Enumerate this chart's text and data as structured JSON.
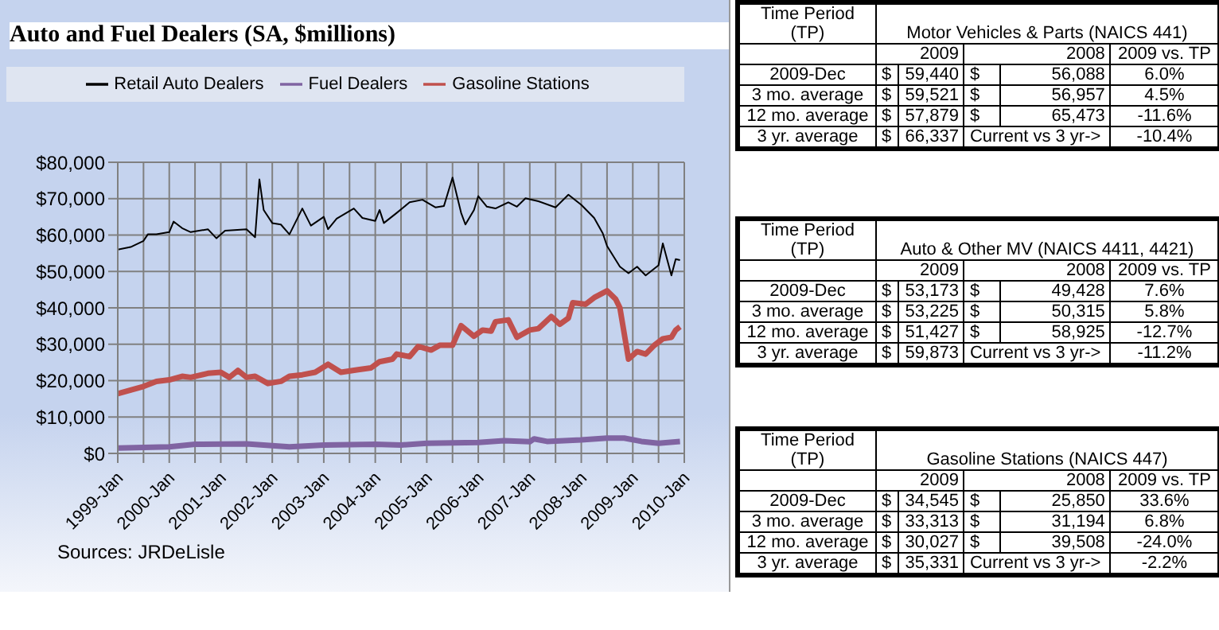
{
  "chart_data": [
    {
      "type": "line",
      "title": "Auto and Fuel Dealers (SA, $millions)",
      "annotations": [
        "Sources: JRDeLisle"
      ],
      "xlim": [
        "1999-01",
        "2010-01"
      ],
      "xticks": [
        {
          "value": "1999-01",
          "label": "1999-Jan"
        },
        {
          "value": "1999-07",
          "label": null
        },
        {
          "value": "2000-01",
          "label": "2000-Jan"
        },
        {
          "value": "2000-07",
          "label": null
        },
        {
          "value": "2001-01",
          "label": "2001-Jan"
        },
        {
          "value": "2001-07",
          "label": null
        },
        {
          "value": "2002-01",
          "label": "2002-Jan"
        },
        {
          "value": "2002-07",
          "label": null
        },
        {
          "value": "2003-01",
          "label": "2003-Jan"
        },
        {
          "value": "2003-07",
          "label": null
        },
        {
          "value": "2004-01",
          "label": "2004-Jan"
        },
        {
          "value": "2004-07",
          "label": null
        },
        {
          "value": "2005-01",
          "label": "2005-Jan"
        },
        {
          "value": "2005-07",
          "label": null
        },
        {
          "value": "2006-01",
          "label": "2006-Jan"
        },
        {
          "value": "2006-07",
          "label": null
        },
        {
          "value": "2007-01",
          "label": "2007-Jan"
        },
        {
          "value": "2007-07",
          "label": null
        },
        {
          "value": "2008-01",
          "label": "2008-Jan"
        },
        {
          "value": "2008-07",
          "label": null
        },
        {
          "value": "2009-01",
          "label": "2009-Jan"
        },
        {
          "value": "2009-07",
          "label": null
        },
        {
          "value": "2010-01",
          "label": "2010-Jan"
        }
      ],
      "ylim": [
        0,
        80000
      ],
      "yticks": [
        {
          "value": 0,
          "label": "$0"
        },
        {
          "value": 10000,
          "label": "$10,000"
        },
        {
          "value": 20000,
          "label": "$20,000"
        },
        {
          "value": 30000,
          "label": "$30,000"
        },
        {
          "value": 40000,
          "label": "$40,000"
        },
        {
          "value": 50000,
          "label": "$50,000"
        },
        {
          "value": 60000,
          "label": "$60,000"
        },
        {
          "value": 70000,
          "label": "$70,000"
        },
        {
          "value": 80000,
          "label": "$80,000"
        }
      ],
      "grid": true,
      "legend": "top",
      "marker": "none",
      "series": [
        {
          "name": "Retail Auto Dealers",
          "color": "#000000",
          "x": [
            "1999-01",
            "1999-04",
            "1999-07",
            "1999-08",
            "1999-10",
            "2000-01",
            "2000-02",
            "2000-04",
            "2000-06",
            "2000-10",
            "2000-12",
            "2001-02",
            "2001-07",
            "2001-09",
            "2001-10",
            "2001-11",
            "2002-01",
            "2002-03",
            "2002-05",
            "2002-08",
            "2002-10",
            "2003-01",
            "2003-02",
            "2003-04",
            "2003-08",
            "2003-10",
            "2004-01",
            "2004-02",
            "2004-03",
            "2004-06",
            "2004-09",
            "2004-12",
            "2005-03",
            "2005-05",
            "2005-07",
            "2005-09",
            "2005-10",
            "2005-12",
            "2006-01",
            "2006-03",
            "2006-05",
            "2006-08",
            "2006-10",
            "2006-12",
            "2007-03",
            "2007-07",
            "2007-10",
            "2008-01",
            "2008-04",
            "2008-06",
            "2008-07",
            "2008-10",
            "2008-12",
            "2009-02",
            "2009-04",
            "2009-07",
            "2009-08",
            "2009-10",
            "2009-11",
            "2009-12"
          ],
          "values": [
            56000,
            56700,
            58400,
            60200,
            60200,
            60800,
            63700,
            61900,
            60800,
            61600,
            59100,
            61200,
            61600,
            59400,
            75300,
            66900,
            63300,
            62900,
            60200,
            67300,
            62600,
            65000,
            61600,
            64500,
            67300,
            64700,
            63900,
            66900,
            63300,
            66100,
            69000,
            69700,
            67600,
            68000,
            75800,
            66100,
            62900,
            66900,
            70700,
            67800,
            67300,
            69000,
            67800,
            70100,
            69300,
            67600,
            71100,
            68300,
            64700,
            60500,
            57000,
            51300,
            49500,
            51300,
            48900,
            51700,
            57700,
            48900,
            53400,
            53100
          ]
        },
        {
          "name": "Fuel Dealers",
          "color": "#8064a2",
          "x": [
            "1999-01",
            "2000-01",
            "2000-07",
            "2001-07",
            "2002-05",
            "2003-01",
            "2004-01",
            "2004-07",
            "2005-01",
            "2006-01",
            "2006-07",
            "2007-01",
            "2007-02",
            "2007-05",
            "2008-01",
            "2008-07",
            "2008-11",
            "2009-03",
            "2009-07",
            "2009-12"
          ],
          "values": [
            1500,
            1800,
            2500,
            2600,
            1800,
            2300,
            2500,
            2300,
            2800,
            3000,
            3500,
            3200,
            4000,
            3300,
            3700,
            4200,
            4200,
            3300,
            2800,
            3300
          ]
        },
        {
          "name": "Gasoline Stations",
          "color": "#c0504d",
          "x": [
            "1999-01",
            "1999-04",
            "1999-07",
            "1999-10",
            "2000-01",
            "2000-04",
            "2000-06",
            "2000-10",
            "2001-01",
            "2001-03",
            "2001-05",
            "2001-07",
            "2001-09",
            "2001-12",
            "2002-03",
            "2002-05",
            "2002-08",
            "2002-11",
            "2003-02",
            "2003-05",
            "2003-09",
            "2003-12",
            "2004-02",
            "2004-05",
            "2004-06",
            "2004-09",
            "2004-11",
            "2005-02",
            "2005-04",
            "2005-07",
            "2005-09",
            "2005-12",
            "2006-02",
            "2006-04",
            "2006-05",
            "2006-08",
            "2006-10",
            "2007-01",
            "2007-03",
            "2007-06",
            "2007-08",
            "2007-10",
            "2007-11",
            "2008-02",
            "2008-04",
            "2008-07",
            "2008-09",
            "2008-10",
            "2008-12",
            "2009-02",
            "2009-04",
            "2009-06",
            "2009-08",
            "2009-10",
            "2009-11",
            "2009-12"
          ],
          "values": [
            16400,
            17400,
            18400,
            19800,
            20200,
            21200,
            20900,
            22000,
            22300,
            20900,
            22800,
            20900,
            21200,
            19200,
            19800,
            21200,
            21600,
            22300,
            24500,
            22300,
            23000,
            23500,
            25200,
            25900,
            27300,
            26600,
            29400,
            28400,
            29700,
            29700,
            35100,
            32200,
            33900,
            33600,
            36200,
            36700,
            31900,
            33900,
            34300,
            37600,
            35500,
            37200,
            41400,
            41000,
            42800,
            44700,
            42400,
            40000,
            25900,
            28000,
            27300,
            29700,
            31500,
            31900,
            33900,
            34800
          ]
        }
      ]
    },
    {
      "type": "other",
      "title": "Motor Vehicles & Parts (NAICS 441)",
      "annotations": [
        "Time Period (TP)",
        "2009",
        "2008",
        "2009 vs. TP",
        "2009-Dec",
        "$",
        "59,440",
        "$",
        "56,088",
        "6.0%",
        "3 mo. average",
        "$",
        "59,521",
        "$",
        "56,957",
        "4.5%",
        "12 mo. average",
        "$",
        "57,879",
        "$",
        "65,473",
        "-11.6%",
        "3 yr. average",
        "$",
        "66,337",
        "Current vs 3 yr->",
        "-10.4%"
      ]
    },
    {
      "type": "other",
      "title": "Auto & Other MV (NAICS 4411, 4421)",
      "annotations": [
        "Time Period (TP)",
        "2009",
        "2008",
        "2009 vs. TP",
        "2009-Dec",
        "$",
        "53,173",
        "$",
        "49,428",
        "7.6%",
        "3 mo. average",
        "$",
        "53,225",
        "$",
        "50,315",
        "5.8%",
        "12 mo. average",
        "$",
        "51,427",
        "$",
        "58,925",
        "-12.7%",
        "3 yr. average",
        "$",
        "59,873",
        "Current vs 3 yr->",
        "-11.2%"
      ]
    },
    {
      "type": "other",
      "title": "Gasoline Stations (NAICS 447)",
      "annotations": [
        "Time Period (TP)",
        "2009",
        "2008",
        "2009 vs. TP",
        "2009-Dec",
        "$",
        "34,545",
        "$",
        "25,850",
        "33.6%",
        "3 mo. average",
        "$",
        "33,313",
        "$",
        "31,194",
        "6.8%",
        "12 mo. average",
        "$",
        "30,027",
        "$",
        "39,508",
        "-24.0%",
        "3 yr. average",
        "$",
        "35,331",
        "Current vs 3 yr->",
        "-2.2%"
      ]
    }
  ]
}
